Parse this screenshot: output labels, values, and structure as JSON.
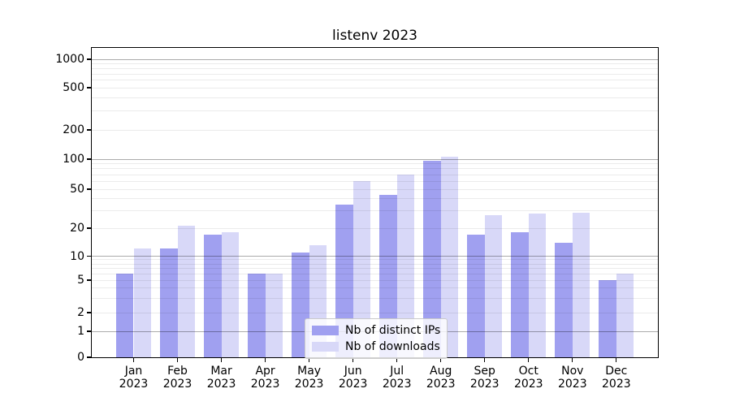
{
  "chart_data": {
    "type": "bar",
    "title": "listenv 2023",
    "categories": [
      "Jan",
      "Feb",
      "Mar",
      "Apr",
      "May",
      "Jun",
      "Jul",
      "Aug",
      "Sep",
      "Oct",
      "Nov",
      "Dec"
    ],
    "category_year": "2023",
    "series": [
      {
        "name": "Nb of distinct IPs",
        "color": "#a0a0f0",
        "values": [
          6,
          12,
          17,
          6,
          11,
          35,
          44,
          97,
          17,
          18,
          14,
          5
        ]
      },
      {
        "name": "Nb of downloads",
        "color": "#d8d8f8",
        "values": [
          12,
          21,
          18,
          6,
          13,
          60,
          70,
          105,
          27,
          28,
          29,
          6
        ]
      }
    ],
    "xlabel": "",
    "ylabel": "",
    "yscale": "symlog",
    "ylim": [
      0,
      1300
    ],
    "y_ticks": [
      0,
      1,
      2,
      5,
      10,
      20,
      50,
      100,
      200,
      500,
      1000
    ],
    "y_major_gridlines": [
      1,
      10,
      100,
      1000
    ],
    "y_minor_gridlines": [
      3,
      4,
      6,
      7,
      8,
      9,
      30,
      40,
      60,
      70,
      80,
      90,
      300,
      400,
      600,
      700,
      800,
      900
    ],
    "grid": true,
    "legend": {
      "position": "lower-center",
      "entries": [
        "Nb of distinct IPs",
        "Nb of downloads"
      ]
    },
    "colors": {
      "bar_distinct_ips": "#a0a0f0",
      "bar_downloads": "#d8d8f8",
      "grid_major": "rgba(0,0,0,0.33)",
      "grid_minor": "rgba(0,0,0,0.08)",
      "axis": "#000000",
      "text": "#000000"
    }
  }
}
